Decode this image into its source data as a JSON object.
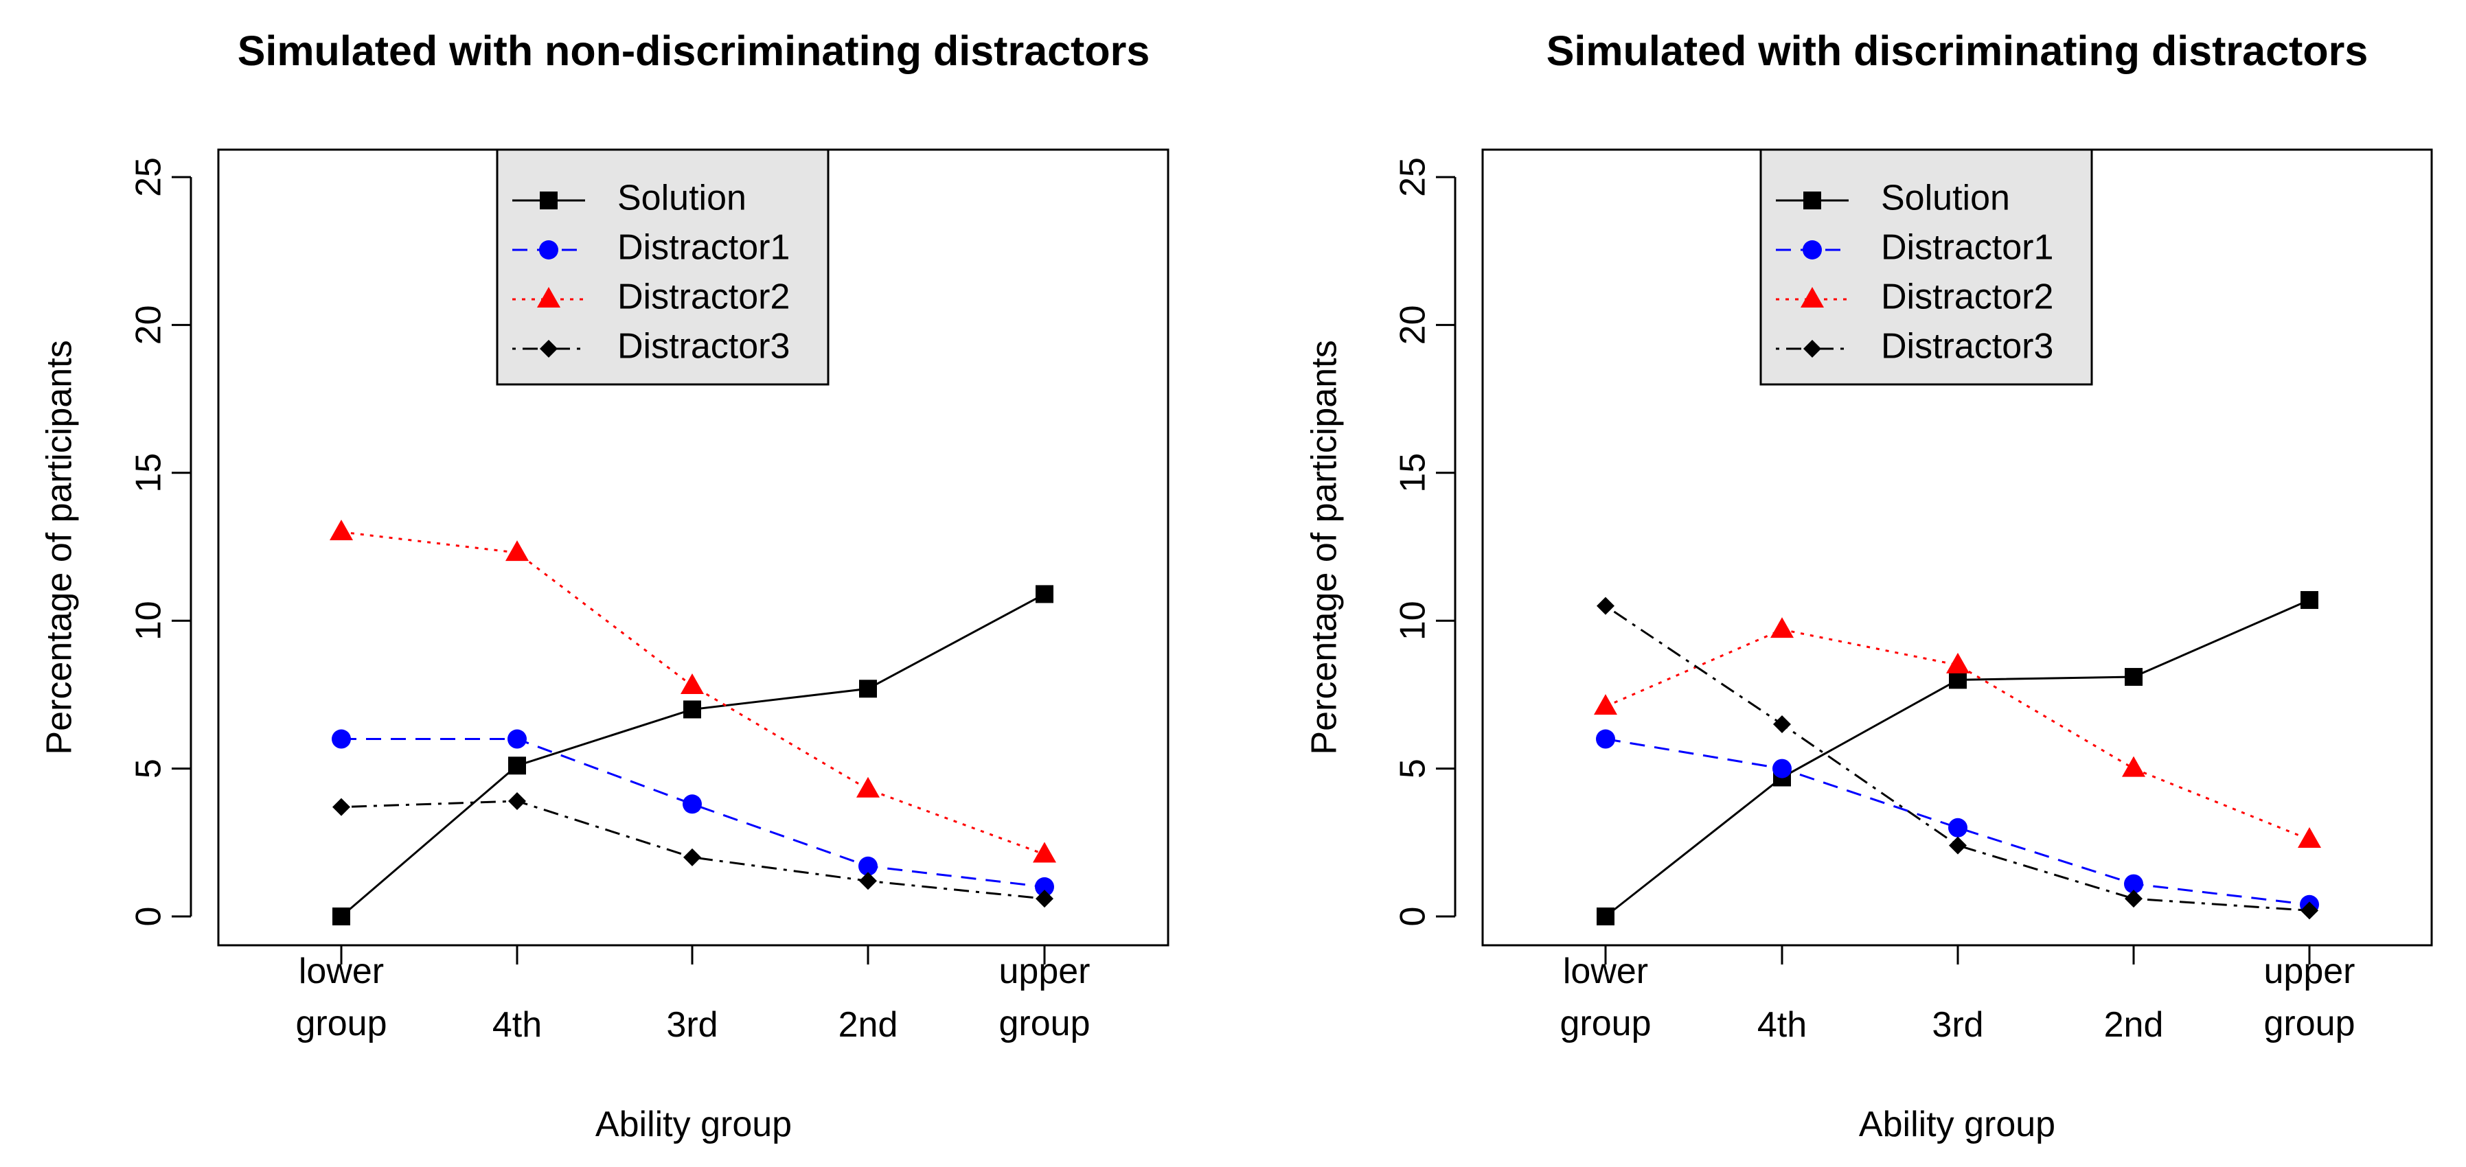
{
  "chart_data": [
    {
      "type": "line",
      "title": "Simulated with non-discriminating distractors",
      "xlabel": "Ability group",
      "ylabel": "Percentage of participants",
      "categories": [
        [
          "lower",
          "group"
        ],
        [
          "4th"
        ],
        [
          "3rd"
        ],
        [
          "2nd"
        ],
        [
          "upper",
          "group"
        ]
      ],
      "ylim": [
        0,
        25
      ],
      "yticks": [
        "0",
        "5",
        "10",
        "15",
        "20",
        "25"
      ],
      "grid": false,
      "legend_position": "top-center",
      "series": [
        {
          "name": "Solution",
          "values": [
            0,
            5.1,
            7.0,
            7.7,
            10.9
          ],
          "color": "#000000",
          "marker": "square",
          "line": "solid"
        },
        {
          "name": "Distractor1",
          "values": [
            6.0,
            6.0,
            3.8,
            1.7,
            1.0
          ],
          "color": "#0000ff",
          "marker": "circle",
          "line": "dashed"
        },
        {
          "name": "Distractor2",
          "values": [
            13.0,
            12.3,
            7.8,
            4.3,
            2.1
          ],
          "color": "#ff0000",
          "marker": "triangle",
          "line": "dotted"
        },
        {
          "name": "Distractor3",
          "values": [
            3.7,
            3.9,
            2.0,
            1.2,
            0.6
          ],
          "color": "#000000",
          "marker": "diamond",
          "line": "dotdash"
        }
      ]
    },
    {
      "type": "line",
      "title": "Simulated with discriminating distractors",
      "xlabel": "Ability group",
      "ylabel": "Percentage of participants",
      "categories": [
        [
          "lower",
          "group"
        ],
        [
          "4th"
        ],
        [
          "3rd"
        ],
        [
          "2nd"
        ],
        [
          "upper",
          "group"
        ]
      ],
      "ylim": [
        0,
        25
      ],
      "yticks": [
        "0",
        "5",
        "10",
        "15",
        "20",
        "25"
      ],
      "grid": false,
      "legend_position": "top-center",
      "series": [
        {
          "name": "Solution",
          "values": [
            0,
            4.7,
            8.0,
            8.1,
            10.7
          ],
          "color": "#000000",
          "marker": "square",
          "line": "solid"
        },
        {
          "name": "Distractor1",
          "values": [
            6.0,
            5.0,
            3.0,
            1.1,
            0.4
          ],
          "color": "#0000ff",
          "marker": "circle",
          "line": "dashed"
        },
        {
          "name": "Distractor2",
          "values": [
            7.1,
            9.7,
            8.5,
            5.0,
            2.6
          ],
          "color": "#ff0000",
          "marker": "triangle",
          "line": "dotted"
        },
        {
          "name": "Distractor3",
          "values": [
            10.5,
            6.5,
            2.4,
            0.6,
            0.2
          ],
          "color": "#000000",
          "marker": "diamond",
          "line": "dotdash"
        }
      ]
    }
  ]
}
